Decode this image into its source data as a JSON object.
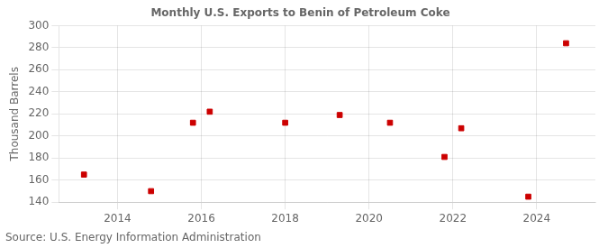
{
  "chart_data": {
    "type": "scatter",
    "title": "Monthly U.S. Exports to Benin of Petroleum Coke",
    "ylabel": "Thousand Barrels",
    "annotations": [
      "Source: U.S. Energy Information Administration"
    ],
    "x": [
      2013.2,
      2014.8,
      2015.8,
      2016.2,
      2018.0,
      2019.3,
      2020.5,
      2021.8,
      2022.2,
      2023.8,
      2024.7
    ],
    "values": [
      165,
      150,
      212,
      222,
      212,
      219,
      212,
      181,
      207,
      145,
      284
    ],
    "color": "#cc0000",
    "marker": "square",
    "xlim": [
      2012.6,
      2025.4
    ],
    "ylim": [
      140,
      300
    ],
    "xticks": [
      2014,
      2016,
      2018,
      2020,
      2022,
      2024
    ],
    "yticks": [
      140,
      160,
      180,
      200,
      220,
      240,
      260,
      280,
      300
    ],
    "grid": true
  }
}
